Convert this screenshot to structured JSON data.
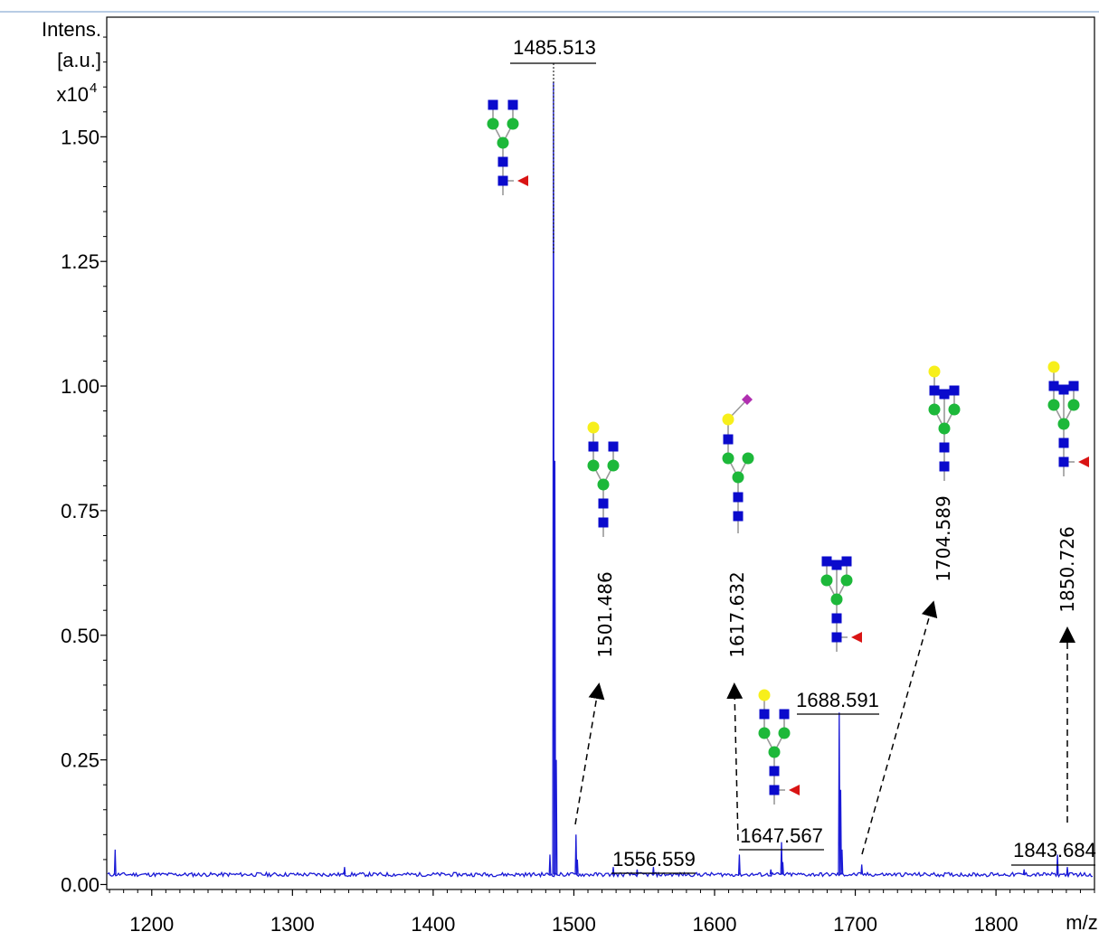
{
  "chart_data": {
    "type": "line",
    "ylabel_lines": [
      "Intens.",
      "[a.u.]",
      "x10"
    ],
    "ylabel_exp": "4",
    "xlabel": "m/z",
    "xlim": [
      1168,
      1870
    ],
    "ylim": [
      -0.01,
      1.74
    ],
    "xticks": [
      1200,
      1300,
      1400,
      1500,
      1600,
      1700,
      1800
    ],
    "yticks": [
      0.0,
      0.25,
      0.5,
      0.75,
      1.0,
      1.25,
      1.5
    ],
    "ytick_labels": [
      "0.00",
      "0.25",
      "0.50",
      "0.75",
      "1.00",
      "1.25",
      "1.50"
    ],
    "baseline": 0.02,
    "line_color": "#1a1ad6",
    "peaks": [
      {
        "mz": 1174,
        "intensity": 0.07
      },
      {
        "mz": 1337,
        "intensity": 0.035
      },
      {
        "mz": 1483,
        "intensity": 0.06
      },
      {
        "mz": 1485.513,
        "intensity": 1.61
      },
      {
        "mz": 1486.5,
        "intensity": 0.85
      },
      {
        "mz": 1487.5,
        "intensity": 0.25
      },
      {
        "mz": 1501.486,
        "intensity": 0.1
      },
      {
        "mz": 1502.5,
        "intensity": 0.05
      },
      {
        "mz": 1528,
        "intensity": 0.035
      },
      {
        "mz": 1545,
        "intensity": 0.03
      },
      {
        "mz": 1556.559,
        "intensity": 0.035
      },
      {
        "mz": 1617.632,
        "intensity": 0.06
      },
      {
        "mz": 1640,
        "intensity": 0.03
      },
      {
        "mz": 1647.567,
        "intensity": 0.085
      },
      {
        "mz": 1648.5,
        "intensity": 0.045
      },
      {
        "mz": 1688.591,
        "intensity": 0.345
      },
      {
        "mz": 1689.6,
        "intensity": 0.19
      },
      {
        "mz": 1690.6,
        "intensity": 0.07
      },
      {
        "mz": 1704.589,
        "intensity": 0.04
      },
      {
        "mz": 1820,
        "intensity": 0.03
      },
      {
        "mz": 1843.684,
        "intensity": 0.06
      },
      {
        "mz": 1850.726,
        "intensity": 0.035
      }
    ],
    "labels": [
      {
        "text": "1485.513",
        "mz": 1485.513,
        "orientation": "horizontal"
      },
      {
        "text": "1556.559",
        "mz": 1556.559,
        "orientation": "horizontal"
      },
      {
        "text": "1647.567",
        "mz": 1647.567,
        "orientation": "horizontal"
      },
      {
        "text": "1688.591",
        "mz": 1688.591,
        "orientation": "horizontal"
      },
      {
        "text": "1843.684",
        "mz": 1843.684,
        "orientation": "horizontal"
      },
      {
        "text": "1501.486",
        "mz": 1501.486,
        "orientation": "vertical"
      },
      {
        "text": "1617.632",
        "mz": 1617.632,
        "orientation": "vertical"
      },
      {
        "text": "1704.589",
        "mz": 1704.589,
        "orientation": "vertical"
      },
      {
        "text": "1850.726",
        "mz": 1850.726,
        "orientation": "vertical"
      }
    ],
    "glycan_colors": {
      "glcnac": "#0a0acc",
      "mannose": "#1db83a",
      "galactose": "#f7ef1b",
      "fucose": "#d91414",
      "sialic_acid": "#b02fb0",
      "linkage": "#9a9a9a"
    },
    "glycans": [
      {
        "peak": "1485.513",
        "structure": "core-fucosylated biantennary, terminal GlcNAc",
        "icons": [
          "glcnac-square",
          "mannose-circle",
          "fucose-triangle"
        ]
      },
      {
        "peak": "1501.486",
        "structure": "biantennary, one galactose",
        "icons": [
          "galactose-circle",
          "glcnac-square",
          "mannose-circle"
        ]
      },
      {
        "peak": "1617.632",
        "structure": "monoantennary, galactose and sialic acid",
        "icons": [
          "sialic-acid-diamond",
          "galactose-circle",
          "glcnac-square",
          "mannose-circle"
        ]
      },
      {
        "peak": "1647.567",
        "structure": "core-fucosylated, one galactose",
        "icons": [
          "galactose-circle",
          "glcnac-square",
          "mannose-circle",
          "fucose-triangle"
        ]
      },
      {
        "peak": "1688.591",
        "structure": "core-fucosylated bisected",
        "icons": [
          "glcnac-square",
          "mannose-circle",
          "fucose-triangle"
        ]
      },
      {
        "peak": "1704.589",
        "structure": "bisected, one galactose",
        "icons": [
          "galactose-circle",
          "glcnac-square",
          "mannose-circle"
        ]
      },
      {
        "peak": "1850.726",
        "structure": "core-fucosylated bisected, one galactose",
        "icons": [
          "galactose-circle",
          "glcnac-square",
          "mannose-circle",
          "fucose-triangle"
        ]
      }
    ]
  }
}
